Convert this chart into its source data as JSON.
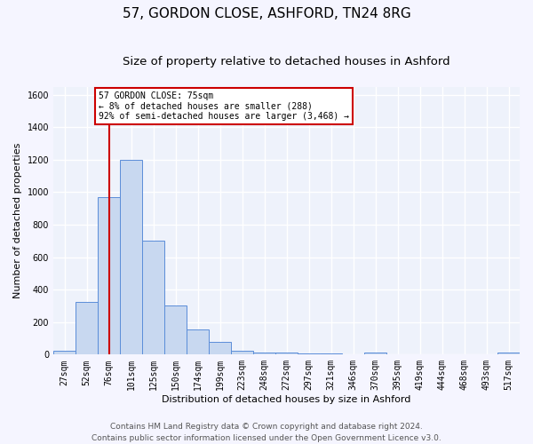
{
  "title_line1": "57, GORDON CLOSE, ASHFORD, TN24 8RG",
  "title_line2": "Size of property relative to detached houses in Ashford",
  "xlabel": "Distribution of detached houses by size in Ashford",
  "ylabel": "Number of detached properties",
  "footnote": "Contains HM Land Registry data © Crown copyright and database right 2024.\nContains public sector information licensed under the Open Government Licence v3.0.",
  "categories": [
    "27sqm",
    "52sqm",
    "76sqm",
    "101sqm",
    "125sqm",
    "150sqm",
    "174sqm",
    "199sqm",
    "223sqm",
    "248sqm",
    "272sqm",
    "297sqm",
    "321sqm",
    "346sqm",
    "370sqm",
    "395sqm",
    "419sqm",
    "444sqm",
    "468sqm",
    "493sqm",
    "517sqm"
  ],
  "values": [
    25,
    325,
    970,
    1200,
    700,
    305,
    155,
    80,
    25,
    15,
    12,
    10,
    8,
    0,
    15,
    0,
    0,
    0,
    0,
    0,
    12
  ],
  "bar_color": "#c8d8f0",
  "bar_edge_color": "#5b8dd9",
  "red_line_index": 2,
  "annotation_text": "57 GORDON CLOSE: 75sqm\n← 8% of detached houses are smaller (288)\n92% of semi-detached houses are larger (3,468) →",
  "annotation_box_color": "#ffffff",
  "annotation_box_edge_color": "#cc0000",
  "ylim": [
    0,
    1650
  ],
  "yticks": [
    0,
    200,
    400,
    600,
    800,
    1000,
    1200,
    1400,
    1600
  ],
  "background_color": "#eef2fb",
  "grid_color": "#ffffff",
  "title_fontsize": 11,
  "subtitle_fontsize": 9.5,
  "axis_label_fontsize": 8,
  "tick_fontsize": 7,
  "footnote_fontsize": 6.5
}
